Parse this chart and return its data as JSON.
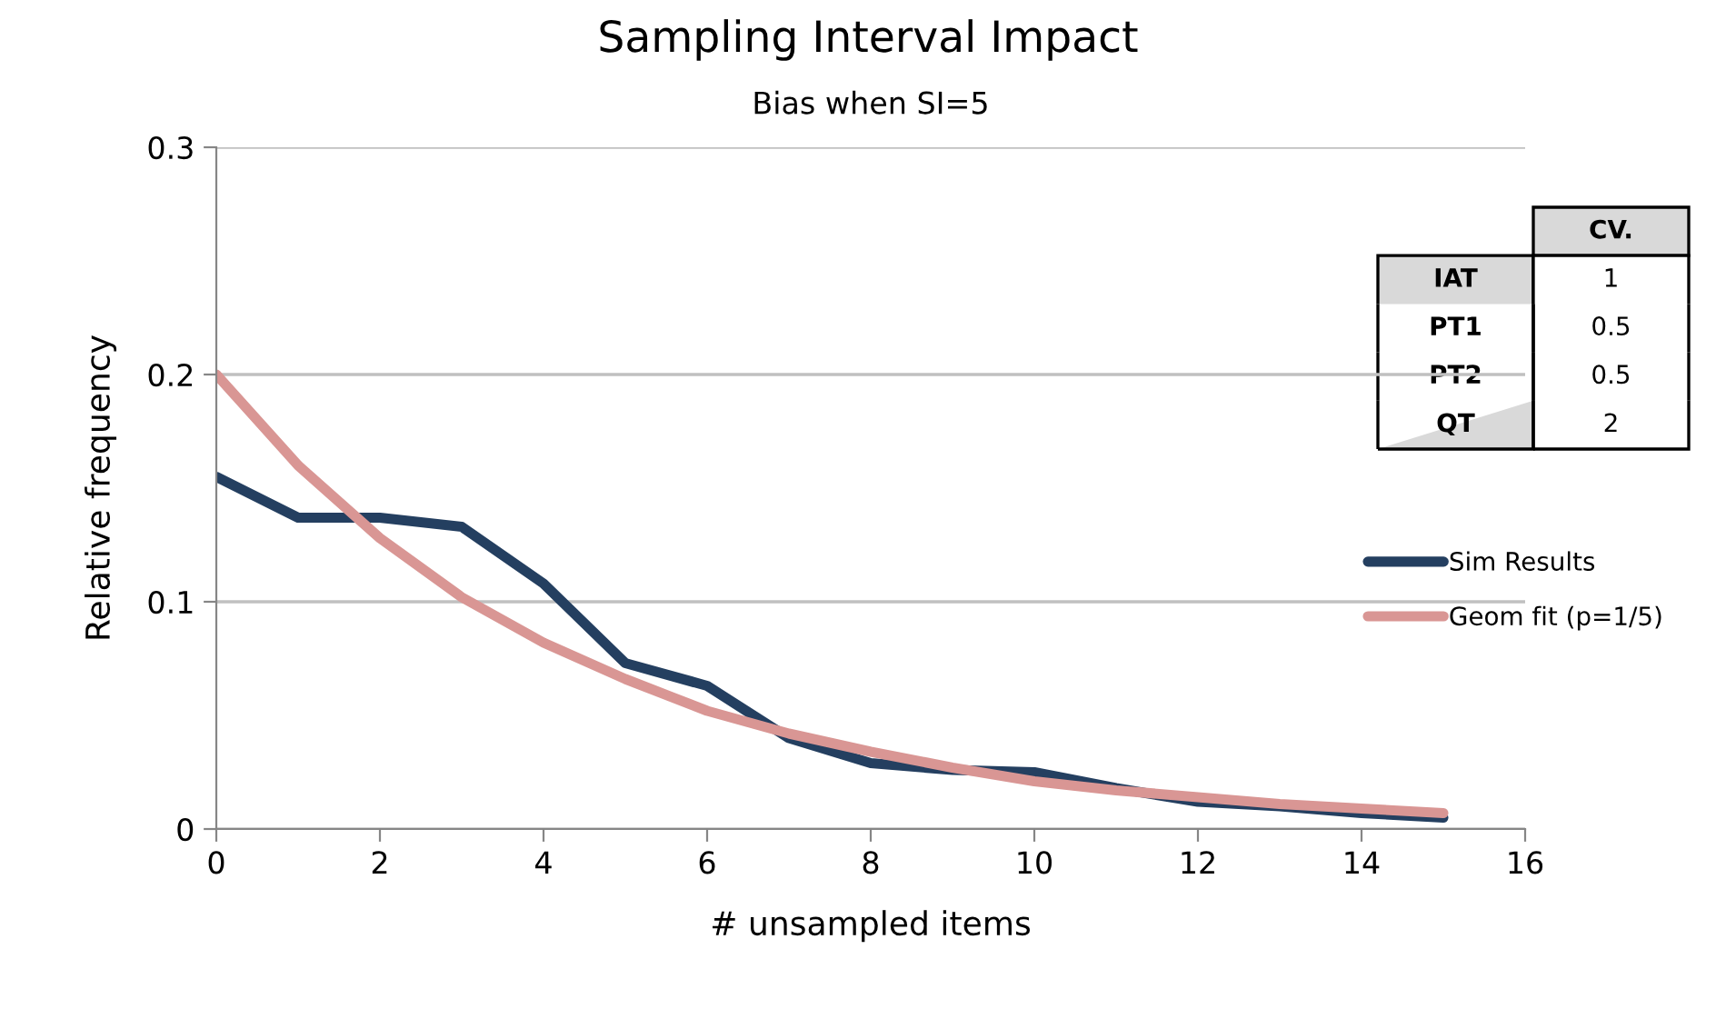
{
  "chart_data": {
    "type": "line",
    "title": "Sampling Interval Impact",
    "subtitle": "Bias when SI=5",
    "xlabel": "# unsampled items",
    "ylabel": "Relative frequency",
    "x": [
      0,
      1,
      2,
      3,
      4,
      5,
      6,
      7,
      8,
      9,
      10,
      11,
      12,
      13,
      14,
      15
    ],
    "series": [
      {
        "name": "Sim Results",
        "color": "#243f60",
        "values": [
          0.155,
          0.137,
          0.137,
          0.133,
          0.108,
          0.073,
          0.063,
          0.04,
          0.029,
          0.026,
          0.025,
          0.018,
          0.012,
          0.01,
          0.007,
          0.005
        ]
      },
      {
        "name": "Geom fit (p=1/5)",
        "color": "#d99694",
        "values": [
          0.2,
          0.16,
          0.128,
          0.102,
          0.082,
          0.066,
          0.052,
          0.042,
          0.034,
          0.027,
          0.021,
          0.017,
          0.014,
          0.011,
          0.009,
          0.007
        ]
      }
    ],
    "xlim": [
      0,
      16
    ],
    "xticks": [
      0,
      2,
      4,
      6,
      8,
      10,
      12,
      14,
      16
    ],
    "ylim": [
      0,
      0.3
    ],
    "yticks": [
      {
        "value": 0,
        "label": "0"
      },
      {
        "value": 0.1,
        "label": "0.1"
      },
      {
        "value": 0.2,
        "label": "0.2"
      },
      {
        "value": 0.3,
        "label": "0.3"
      }
    ],
    "grid": "y",
    "legend": "right",
    "marker": "none",
    "line_style": "solid",
    "annotations": [
      "CV.",
      "IAT",
      "1",
      "PT1",
      "0.5",
      "PT2",
      "0.5",
      "QT",
      "2"
    ]
  }
}
